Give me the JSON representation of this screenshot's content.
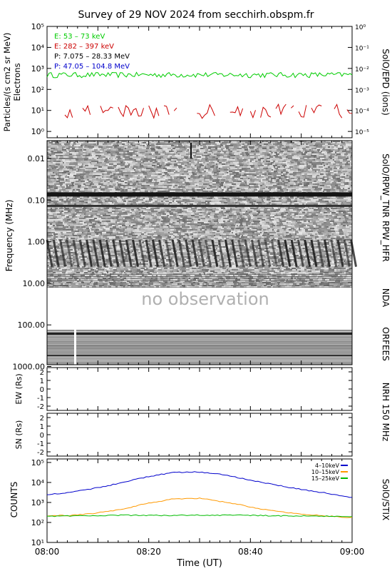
{
  "title": "Survey of 29 NOV 2024 from secchirh.obspm.fr",
  "time_axis": {
    "label": "Time (UT)",
    "ticks": [
      "08:00",
      "08:20",
      "08:40",
      "09:00"
    ]
  },
  "chart_data": [
    {
      "type": "line",
      "panel": "particles",
      "right_label": "SolO/EPD (ions)",
      "ylabel_left": "Particles/(s cm2 sr MeV)",
      "ylabel_left2": "Electrons",
      "y_log": true,
      "ylim": [
        0.5,
        100000
      ],
      "y_ticks": [
        "10⁰",
        "10¹",
        "10²",
        "10³",
        "10⁴",
        "10⁵"
      ],
      "right_ylim": [
        5e-06,
        1
      ],
      "right_ticks": [
        "10⁰",
        "10⁻¹",
        "10⁻²",
        "10⁻³",
        "10⁻⁴",
        "10⁻⁵"
      ],
      "legend": [
        {
          "name": "E: 53 – 73 keV",
          "color": "#00cc00"
        },
        {
          "name": "E: 282 – 397 keV",
          "color": "#cc0000"
        },
        {
          "name": "P: 7.075 – 28.33 MeV",
          "color": "#000000"
        },
        {
          "name": "P: 47.05 – 104.8 MeV",
          "color": "#0000cc"
        }
      ],
      "series": [
        {
          "name": "E: 53 – 73 keV",
          "color": "#00cc00",
          "x_min": [
            0,
            60
          ],
          "typical": 400,
          "range": [
            200,
            650
          ]
        },
        {
          "name": "E: 282 – 397 keV",
          "color": "#cc0000",
          "x_min": [
            2,
            60
          ],
          "typical": 8,
          "range": [
            4,
            20
          ],
          "gappy": true
        }
      ]
    },
    {
      "type": "heatmap",
      "panel": "radio-spectrogram",
      "ylabel": "Frequency (MHz)",
      "y_log": true,
      "y_ticks": [
        "0.01",
        "0.10",
        "1.00",
        "10.00",
        "100.00",
        "1000.00"
      ],
      "right_labels": [
        "SolO/RPW_TNR",
        "RPW_HFR",
        "NDA",
        "ORFEES"
      ],
      "no_data_text": "no observation"
    },
    {
      "type": "scatter",
      "panel": "NRH-EW",
      "ylabel": "EW (Rs)",
      "right_label": "NRH 150 MHz",
      "ylim": [
        -2.5,
        2.5
      ],
      "y_ticks": [
        "-2",
        "-1",
        "0",
        "1",
        "2"
      ],
      "points": []
    },
    {
      "type": "scatter",
      "panel": "NRH-SN",
      "ylabel": "SN (Rs)",
      "ylim": [
        -2.5,
        2.5
      ],
      "y_ticks": [
        "-2",
        "-1",
        "0",
        "1",
        "2"
      ],
      "points": []
    },
    {
      "type": "line",
      "panel": "STIX",
      "ylabel": "COUNTS",
      "right_label": "SolO/STIX",
      "y_log": true,
      "ylim": [
        10,
        150000
      ],
      "y_ticks": [
        "10¹",
        "10²",
        "10³",
        "10⁴",
        "10⁵"
      ],
      "series": [
        {
          "name": "4–10keV",
          "color": "#0000cc",
          "x": [
            0,
            5,
            10,
            15,
            20,
            25,
            30,
            35,
            40,
            45,
            50,
            55,
            60
          ],
          "y": [
            2400,
            3300,
            5500,
            10000,
            20000,
            32000,
            33000,
            24000,
            13000,
            7500,
            4500,
            2900,
            1700
          ]
        },
        {
          "name": "10–15keV",
          "color": "#ff9900",
          "x": [
            0,
            5,
            10,
            15,
            20,
            25,
            30,
            35,
            40,
            45,
            50,
            55,
            60
          ],
          "y": [
            210,
            230,
            300,
            470,
            950,
            1500,
            1600,
            1050,
            600,
            360,
            260,
            210,
            170
          ]
        },
        {
          "name": "15–25keV",
          "color": "#00bb00",
          "x": [
            0,
            5,
            10,
            15,
            20,
            25,
            30,
            35,
            40,
            45,
            50,
            55,
            60
          ],
          "y": [
            200,
            215,
            220,
            230,
            225,
            225,
            230,
            230,
            225,
            215,
            210,
            205,
            190
          ]
        }
      ]
    }
  ]
}
